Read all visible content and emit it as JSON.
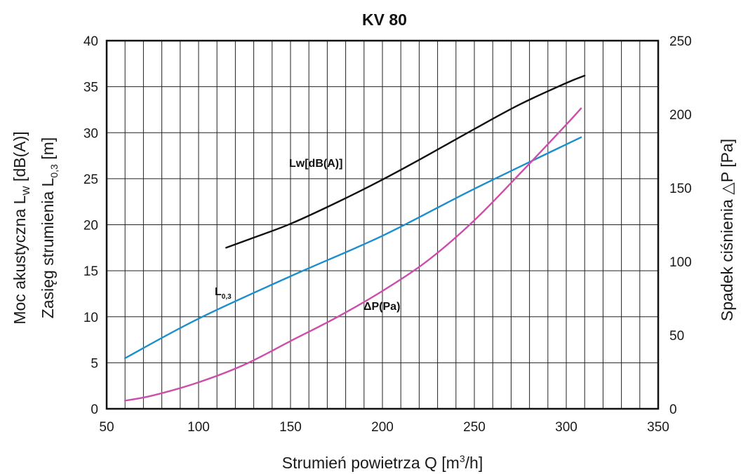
{
  "chart_data": {
    "type": "line",
    "title": "KV 80",
    "xlabel": {
      "main": "Strumień powietrza Q [m",
      "sup": "3",
      "tail": "/h]"
    },
    "ylabel_left": {
      "line1": {
        "main": "Moc akustyczna L",
        "sub": "W",
        "tail": " [dB(A)]"
      },
      "line2": {
        "main": "Zasięg strumienia L",
        "sub": "0,3",
        "tail": " [m]"
      }
    },
    "ylabel_right": {
      "main": "Spadek ciśnienia ",
      "delta": "△",
      "tail": "P [Pa]"
    },
    "xlim": [
      50,
      350
    ],
    "ylim_left": [
      0,
      40
    ],
    "ylim_right": [
      0,
      250
    ],
    "x_ticks": [
      "50",
      "100",
      "150",
      "200",
      "250",
      "300",
      "350"
    ],
    "y_left_ticks": [
      "0",
      "5",
      "10",
      "15",
      "20",
      "25",
      "30",
      "35",
      "40"
    ],
    "y_right_ticks": [
      "0",
      "50",
      "100",
      "150",
      "200",
      "250"
    ],
    "grid": true,
    "series": [
      {
        "name": "Lw[dB(A)]",
        "axis": "left",
        "color": "#111111",
        "x": [
          115,
          130,
          150,
          175,
          200,
          225,
          250,
          275,
          300,
          310
        ],
        "y": [
          17.5,
          18.6,
          20.1,
          22.4,
          24.9,
          27.6,
          30.4,
          33.1,
          35.4,
          36.2
        ]
      },
      {
        "name": "L0,3",
        "label_main": "L",
        "label_sub": "0,3",
        "axis": "left",
        "color": "#1a8fcc",
        "x": [
          60,
          100,
          150,
          200,
          250,
          308
        ],
        "y": [
          5.5,
          9.8,
          14.4,
          18.8,
          23.9,
          29.5
        ]
      },
      {
        "name": "ΔP(Pa)",
        "axis": "right",
        "color": "#cc4daa",
        "x": [
          60,
          75,
          100,
          125,
          150,
          175,
          200,
          225,
          250,
          275,
          300,
          308
        ],
        "y": [
          5.5,
          9,
          18,
          30,
          46,
          62,
          80,
          101,
          128,
          160,
          193,
          204
        ]
      }
    ]
  }
}
